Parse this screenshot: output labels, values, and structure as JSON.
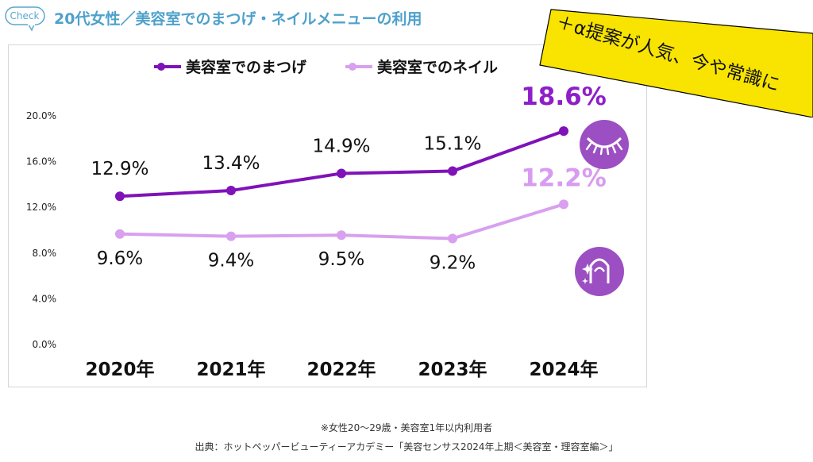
{
  "header": {
    "badge": "Check",
    "title": "20代女性／美容室でのまつげ・ネイルメニューの利用"
  },
  "sticky_note": {
    "text": "＋α提案が人気、今や常識に",
    "color": "#f8e400"
  },
  "chart_data": {
    "type": "line",
    "categories": [
      "2020年",
      "2021年",
      "2022年",
      "2023年",
      "2024年"
    ],
    "series": [
      {
        "name": "美容室でのまつげ",
        "values": [
          12.9,
          13.4,
          14.9,
          15.1,
          18.6
        ],
        "labels": [
          "12.9%",
          "13.4%",
          "14.9%",
          "15.1%",
          "18.6%"
        ],
        "color": "#7f12b8",
        "highlight_color": "#8e1fc8",
        "icon": "eyelash-icon"
      },
      {
        "name": "美容室でのネイル",
        "values": [
          9.6,
          9.4,
          9.5,
          9.2,
          12.2
        ],
        "labels": [
          "9.6%",
          "9.4%",
          "9.5%",
          "9.2%",
          "12.2%"
        ],
        "color": "#d8a0ee",
        "highlight_color": "#d79cf0",
        "icon": "nail-icon"
      }
    ],
    "yticks": [
      "0.0%",
      "4.0%",
      "8.0%",
      "12.0%",
      "16.0%",
      "20.0%"
    ],
    "ylim": [
      0,
      20
    ],
    "icon_bg": "#9b4fc2"
  },
  "footnotes": {
    "note": "※女性20〜29歳・美容室1年以内利用者",
    "source": "出典：ホットペッパービューティーアカデミー「美容センサス2024年上期＜美容室・理容室編＞」"
  }
}
